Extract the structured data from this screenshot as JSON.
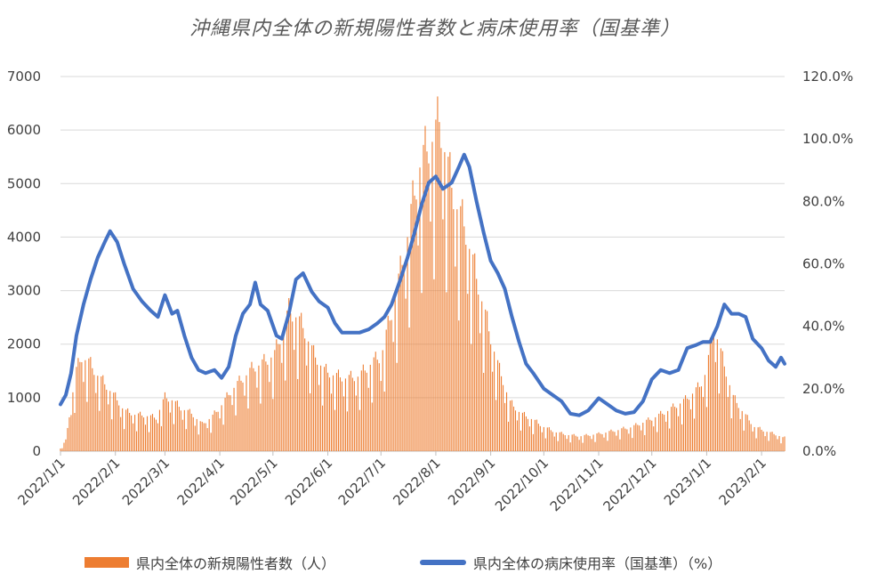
{
  "colors": {
    "bars": "#ED7D31",
    "line": "#4472C4",
    "grid": "#d9d9d9"
  },
  "chart_data": {
    "type": "bar+line",
    "title": "沖縄県内全体の新規陽性者数と病床使用率（国基準）",
    "y_left": {
      "min": 0,
      "max": 7000,
      "ticks": [
        "0",
        "1000",
        "2000",
        "3000",
        "4000",
        "5000",
        "6000",
        "7000"
      ]
    },
    "y_right": {
      "min": 0,
      "max": 120,
      "ticks": [
        "0.0%",
        "20.0%",
        "40.0%",
        "60.0%",
        "80.0%",
        "100.0%",
        "120.0%"
      ]
    },
    "x_range": [
      "2022-01-01",
      "2023-02-14"
    ],
    "x_tick_labels": [
      {
        "date": "2022-01-01",
        "label": "2022/1/1"
      },
      {
        "date": "2022-02-01",
        "label": "2022/2/1"
      },
      {
        "date": "2022-03-01",
        "label": "2022/3/1"
      },
      {
        "date": "2022-04-01",
        "label": "2022/4/1"
      },
      {
        "date": "2022-05-01",
        "label": "2022/5/1"
      },
      {
        "date": "2022-06-01",
        "label": "2022/6/1"
      },
      {
        "date": "2022-07-01",
        "label": "2022/7/1"
      },
      {
        "date": "2022-08-01",
        "label": "2022/8/1"
      },
      {
        "date": "2022-09-01",
        "label": "2022/9/1"
      },
      {
        "date": "2022-10-01",
        "label": "2022/10/1"
      },
      {
        "date": "2022-11-01",
        "label": "2022/11/1"
      },
      {
        "date": "2022-12-01",
        "label": "2022/12/1"
      },
      {
        "date": "2023-01-01",
        "label": "2023/1/1"
      },
      {
        "date": "2023-02-01",
        "label": "2023/2/1"
      }
    ],
    "series": [
      {
        "name": "県内全体の新規陽性者数（人）",
        "kind": "bar",
        "axis": "left",
        "points": [
          [
            "2022-01-01",
            50
          ],
          [
            "2022-01-04",
            200
          ],
          [
            "2022-01-07",
            900
          ],
          [
            "2022-01-10",
            1500
          ],
          [
            "2022-01-13",
            1750
          ],
          [
            "2022-01-17",
            1650
          ],
          [
            "2022-01-21",
            1450
          ],
          [
            "2022-01-26",
            1250
          ],
          [
            "2022-02-01",
            1000
          ],
          [
            "2022-02-06",
            750
          ],
          [
            "2022-02-12",
            680
          ],
          [
            "2022-02-18",
            660
          ],
          [
            "2022-02-24",
            620
          ],
          [
            "2022-03-01",
            1000
          ],
          [
            "2022-03-05",
            950
          ],
          [
            "2022-03-10",
            800
          ],
          [
            "2022-03-16",
            700
          ],
          [
            "2022-03-22",
            500
          ],
          [
            "2022-03-28",
            650
          ],
          [
            "2022-04-03",
            900
          ],
          [
            "2022-04-08",
            1150
          ],
          [
            "2022-04-14",
            1350
          ],
          [
            "2022-04-20",
            1550
          ],
          [
            "2022-04-26",
            1650
          ],
          [
            "2022-05-02",
            1800
          ],
          [
            "2022-05-06",
            2200
          ],
          [
            "2022-05-10",
            2600
          ],
          [
            "2022-05-14",
            2500
          ],
          [
            "2022-05-18",
            2300
          ],
          [
            "2022-05-24",
            1800
          ],
          [
            "2022-05-30",
            1500
          ],
          [
            "2022-06-05",
            1400
          ],
          [
            "2022-06-12",
            1350
          ],
          [
            "2022-06-19",
            1400
          ],
          [
            "2022-06-26",
            1650
          ],
          [
            "2022-07-01",
            1750
          ],
          [
            "2022-07-05",
            2300
          ],
          [
            "2022-07-10",
            3000
          ],
          [
            "2022-07-15",
            3800
          ],
          [
            "2022-07-19",
            4600
          ],
          [
            "2022-07-23",
            5300
          ],
          [
            "2022-07-27",
            5600
          ],
          [
            "2022-08-01",
            5900
          ],
          [
            "2022-08-03",
            6150
          ],
          [
            "2022-08-07",
            5400
          ],
          [
            "2022-08-12",
            4600
          ],
          [
            "2022-08-17",
            4200
          ],
          [
            "2022-08-22",
            3500
          ],
          [
            "2022-08-27",
            2800
          ],
          [
            "2022-09-01",
            2100
          ],
          [
            "2022-09-06",
            1500
          ],
          [
            "2022-09-12",
            900
          ],
          [
            "2022-09-18",
            700
          ],
          [
            "2022-09-24",
            600
          ],
          [
            "2022-10-01",
            450
          ],
          [
            "2022-10-08",
            350
          ],
          [
            "2022-10-15",
            300
          ],
          [
            "2022-10-22",
            280
          ],
          [
            "2022-11-01",
            320
          ],
          [
            "2022-11-10",
            380
          ],
          [
            "2022-11-20",
            450
          ],
          [
            "2022-12-01",
            600
          ],
          [
            "2022-12-10",
            750
          ],
          [
            "2022-12-20",
            950
          ],
          [
            "2022-12-28",
            1200
          ],
          [
            "2023-01-01",
            1500
          ],
          [
            "2023-01-05",
            2350
          ],
          [
            "2023-01-10",
            1700
          ],
          [
            "2023-01-16",
            1000
          ],
          [
            "2023-01-22",
            700
          ],
          [
            "2023-01-28",
            450
          ],
          [
            "2023-02-05",
            350
          ],
          [
            "2023-02-10",
            300
          ],
          [
            "2023-02-13",
            250
          ]
        ]
      },
      {
        "name": "県内全体の病床使用率（国基準）（%）",
        "kind": "line",
        "axis": "right",
        "points": [
          [
            "2022-01-01",
            15
          ],
          [
            "2022-01-04",
            18
          ],
          [
            "2022-01-07",
            25
          ],
          [
            "2022-01-10",
            37
          ],
          [
            "2022-01-14",
            47
          ],
          [
            "2022-01-18",
            55
          ],
          [
            "2022-01-22",
            62
          ],
          [
            "2022-01-26",
            67
          ],
          [
            "2022-01-29",
            70.5
          ],
          [
            "2022-02-02",
            67
          ],
          [
            "2022-02-06",
            60
          ],
          [
            "2022-02-11",
            52
          ],
          [
            "2022-02-16",
            48
          ],
          [
            "2022-02-21",
            45
          ],
          [
            "2022-02-25",
            43
          ],
          [
            "2022-03-01",
            50
          ],
          [
            "2022-03-05",
            44
          ],
          [
            "2022-03-08",
            45
          ],
          [
            "2022-03-12",
            37
          ],
          [
            "2022-03-16",
            30
          ],
          [
            "2022-03-20",
            26
          ],
          [
            "2022-03-24",
            25
          ],
          [
            "2022-03-29",
            26
          ],
          [
            "2022-04-02",
            23.5
          ],
          [
            "2022-04-06",
            27
          ],
          [
            "2022-04-10",
            37
          ],
          [
            "2022-04-14",
            44
          ],
          [
            "2022-04-18",
            47
          ],
          [
            "2022-04-21",
            54
          ],
          [
            "2022-04-24",
            47
          ],
          [
            "2022-04-28",
            45
          ],
          [
            "2022-05-03",
            37
          ],
          [
            "2022-05-06",
            36
          ],
          [
            "2022-05-10",
            44
          ],
          [
            "2022-05-14",
            55
          ],
          [
            "2022-05-18",
            57
          ],
          [
            "2022-05-23",
            51
          ],
          [
            "2022-05-27",
            48
          ],
          [
            "2022-06-01",
            46
          ],
          [
            "2022-06-05",
            41
          ],
          [
            "2022-06-09",
            38
          ],
          [
            "2022-06-14",
            38
          ],
          [
            "2022-06-19",
            38
          ],
          [
            "2022-06-24",
            39
          ],
          [
            "2022-06-29",
            41
          ],
          [
            "2022-07-03",
            43
          ],
          [
            "2022-07-07",
            47
          ],
          [
            "2022-07-12",
            55
          ],
          [
            "2022-07-16",
            62
          ],
          [
            "2022-07-20",
            70
          ],
          [
            "2022-07-24",
            79
          ],
          [
            "2022-07-28",
            86
          ],
          [
            "2022-08-01",
            88
          ],
          [
            "2022-08-05",
            84
          ],
          [
            "2022-08-10",
            86
          ],
          [
            "2022-08-14",
            91
          ],
          [
            "2022-08-17",
            95
          ],
          [
            "2022-08-20",
            91
          ],
          [
            "2022-08-24",
            80
          ],
          [
            "2022-08-28",
            70
          ],
          [
            "2022-09-01",
            61
          ],
          [
            "2022-09-05",
            57
          ],
          [
            "2022-09-09",
            52
          ],
          [
            "2022-09-13",
            43
          ],
          [
            "2022-09-17",
            35
          ],
          [
            "2022-09-21",
            28
          ],
          [
            "2022-09-25",
            25
          ],
          [
            "2022-10-01",
            20
          ],
          [
            "2022-10-06",
            18
          ],
          [
            "2022-10-11",
            16
          ],
          [
            "2022-10-16",
            12
          ],
          [
            "2022-10-21",
            11.5
          ],
          [
            "2022-10-26",
            13
          ],
          [
            "2022-11-01",
            17
          ],
          [
            "2022-11-06",
            15
          ],
          [
            "2022-11-11",
            13
          ],
          [
            "2022-11-16",
            12
          ],
          [
            "2022-11-21",
            12.5
          ],
          [
            "2022-11-26",
            16
          ],
          [
            "2022-12-01",
            23
          ],
          [
            "2022-12-06",
            26
          ],
          [
            "2022-12-11",
            25
          ],
          [
            "2022-12-16",
            26
          ],
          [
            "2022-12-21",
            33
          ],
          [
            "2022-12-26",
            34
          ],
          [
            "2022-12-30",
            35
          ],
          [
            "2023-01-03",
            35
          ],
          [
            "2023-01-07",
            40
          ],
          [
            "2023-01-11",
            47
          ],
          [
            "2023-01-15",
            44
          ],
          [
            "2023-01-19",
            44
          ],
          [
            "2023-01-23",
            43
          ],
          [
            "2023-01-27",
            36
          ],
          [
            "2023-02-01",
            33
          ],
          [
            "2023-02-05",
            29
          ],
          [
            "2023-02-09",
            27
          ],
          [
            "2023-02-12",
            30
          ],
          [
            "2023-02-14",
            28
          ]
        ]
      }
    ],
    "legend": {
      "position": "bottom"
    }
  },
  "legend": {
    "bars_label": "県内全体の新規陽性者数（人）",
    "line_label": "県内全体の病床使用率（国基準）（%）"
  }
}
